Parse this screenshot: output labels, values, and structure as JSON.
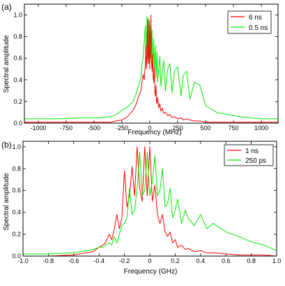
{
  "chart_data": [
    {
      "panel_label": "(a)",
      "type": "line",
      "xlabel": "Frequency (MHz)",
      "ylabel": "Spectral amplitude",
      "xlim": [
        -1125,
        1150
      ],
      "ylim": [
        0,
        1.1
      ],
      "x_ticks": [
        -1000,
        -750,
        -500,
        -250,
        0,
        250,
        500,
        750,
        1000
      ],
      "x_tick_labels": [
        "-1000",
        "-750",
        "-500",
        "-250",
        "0",
        "250",
        "500",
        "750",
        "1000"
      ],
      "y_ticks": [
        0,
        0.2,
        0.4,
        0.6,
        0.8,
        1.0
      ],
      "y_tick_labels": [
        "0.0",
        "0.2",
        "0.4",
        "0.6",
        "0.8",
        "1.0"
      ],
      "grid": false,
      "legend_position": "top-right",
      "series": [
        {
          "name": "6 ns",
          "color": "#ff0000",
          "x": [
            -1125,
            -1000,
            -800,
            -600,
            -450,
            -350,
            -300,
            -250,
            -200,
            -150,
            -120,
            -100,
            -80,
            -70,
            -60,
            -50,
            -40,
            -35,
            -30,
            -25,
            -20,
            -15,
            -10,
            -5,
            0,
            5,
            10,
            15,
            20,
            25,
            30,
            35,
            40,
            45,
            50,
            55,
            60,
            65,
            70,
            80,
            90,
            100,
            110,
            125,
            140,
            160,
            180,
            200,
            220,
            250,
            280,
            300,
            330,
            360,
            400,
            450,
            500,
            600,
            800,
            1000,
            1150
          ],
          "y": [
            0.01,
            0.01,
            0.01,
            0.01,
            0.01,
            0.01,
            0.02,
            0.03,
            0.06,
            0.12,
            0.18,
            0.25,
            0.3,
            0.38,
            0.45,
            0.4,
            0.55,
            0.72,
            0.5,
            0.62,
            0.96,
            0.55,
            0.62,
            0.95,
            0.5,
            0.68,
            1.0,
            0.58,
            0.48,
            0.64,
            0.42,
            0.38,
            0.52,
            0.3,
            0.25,
            0.35,
            0.2,
            0.18,
            0.24,
            0.14,
            0.18,
            0.11,
            0.14,
            0.09,
            0.1,
            0.07,
            0.08,
            0.05,
            0.06,
            0.04,
            0.05,
            0.03,
            0.04,
            0.03,
            0.02,
            0.02,
            0.01,
            0.01,
            0.01,
            0.01,
            0.01
          ]
        },
        {
          "name": "0.5 ns",
          "color": "#00ee00",
          "x": [
            -1125,
            -1000,
            -800,
            -600,
            -450,
            -350,
            -300,
            -250,
            -200,
            -150,
            -120,
            -100,
            -80,
            -70,
            -60,
            -50,
            -40,
            -35,
            -30,
            -25,
            -20,
            -15,
            -10,
            -5,
            0,
            5,
            10,
            15,
            20,
            25,
            30,
            35,
            40,
            45,
            50,
            55,
            60,
            65,
            70,
            80,
            90,
            100,
            110,
            125,
            140,
            160,
            180,
            200,
            220,
            250,
            280,
            300,
            330,
            360,
            400,
            450,
            500,
            600,
            800,
            1000,
            1150
          ],
          "y": [
            0.04,
            0.04,
            0.04,
            0.05,
            0.05,
            0.06,
            0.08,
            0.12,
            0.15,
            0.2,
            0.28,
            0.35,
            0.42,
            0.55,
            0.6,
            0.75,
            0.9,
            0.62,
            0.7,
            0.99,
            0.6,
            0.8,
            0.97,
            0.55,
            0.75,
            0.9,
            0.6,
            0.7,
            0.86,
            0.52,
            0.62,
            0.78,
            0.45,
            0.58,
            0.72,
            0.42,
            0.52,
            0.66,
            0.38,
            0.5,
            0.62,
            0.34,
            0.46,
            0.58,
            0.3,
            0.5,
            0.55,
            0.28,
            0.48,
            0.52,
            0.25,
            0.44,
            0.48,
            0.22,
            0.38,
            0.35,
            0.16,
            0.1,
            0.06,
            0.04,
            0.04
          ]
        }
      ]
    },
    {
      "panel_label": "(b)",
      "type": "line",
      "xlabel": "Frequency (GHz)",
      "ylabel": "Spectral amplitude",
      "xlim": [
        -1.0,
        1.0
      ],
      "ylim": [
        0,
        1.05
      ],
      "x_ticks": [
        -1.0,
        -0.8,
        -0.6,
        -0.4,
        -0.2,
        0.0,
        0.2,
        0.4,
        0.6,
        0.8,
        1.0
      ],
      "x_tick_labels": [
        "-1.0",
        "-0.8",
        "-0.6",
        "-0.4",
        "-0.2",
        "0",
        "0.2",
        "0.4",
        "0.6",
        "0.8",
        "1.0"
      ],
      "y_ticks": [
        0,
        0.2,
        0.4,
        0.6,
        0.8,
        1.0
      ],
      "y_tick_labels": [
        "0.0",
        "0.2",
        "0.4",
        "0.6",
        "0.8",
        "1.0"
      ],
      "grid": false,
      "legend_position": "top-right",
      "series": [
        {
          "name": "1 ns",
          "color": "#ff0000",
          "x": [
            -1.0,
            -0.8,
            -0.6,
            -0.5,
            -0.45,
            -0.4,
            -0.37,
            -0.35,
            -0.32,
            -0.3,
            -0.28,
            -0.26,
            -0.24,
            -0.22,
            -0.2,
            -0.18,
            -0.16,
            -0.14,
            -0.12,
            -0.1,
            -0.08,
            -0.06,
            -0.04,
            -0.02,
            0.0,
            0.02,
            0.04,
            0.06,
            0.08,
            0.1,
            0.12,
            0.14,
            0.16,
            0.18,
            0.2,
            0.22,
            0.25,
            0.28,
            0.3,
            0.35,
            0.4,
            0.45,
            0.5,
            0.6,
            0.7,
            0.8,
            0.9,
            1.0
          ],
          "y": [
            0.0,
            0.0,
            0.01,
            0.03,
            0.04,
            0.08,
            0.1,
            0.12,
            0.2,
            0.15,
            0.25,
            0.38,
            0.25,
            0.35,
            0.78,
            0.45,
            0.55,
            0.82,
            0.55,
            1.0,
            0.62,
            0.5,
            1.0,
            0.55,
            1.0,
            0.5,
            0.65,
            0.38,
            0.3,
            0.38,
            0.22,
            0.18,
            0.22,
            0.12,
            0.15,
            0.08,
            0.1,
            0.06,
            0.07,
            0.04,
            0.05,
            0.03,
            0.03,
            0.02,
            0.01,
            0.01,
            0.01,
            0.0
          ]
        },
        {
          "name": "250 ps",
          "color": "#00ee00",
          "x": [
            -1.0,
            -0.8,
            -0.6,
            -0.5,
            -0.45,
            -0.4,
            -0.37,
            -0.35,
            -0.32,
            -0.3,
            -0.28,
            -0.26,
            -0.24,
            -0.22,
            -0.2,
            -0.18,
            -0.16,
            -0.14,
            -0.12,
            -0.1,
            -0.08,
            -0.06,
            -0.04,
            -0.02,
            0.0,
            0.02,
            0.04,
            0.06,
            0.08,
            0.1,
            0.12,
            0.14,
            0.16,
            0.18,
            0.2,
            0.22,
            0.25,
            0.28,
            0.3,
            0.35,
            0.4,
            0.45,
            0.5,
            0.6,
            0.7,
            0.8,
            0.9,
            1.0
          ],
          "y": [
            0.02,
            0.02,
            0.03,
            0.05,
            0.06,
            0.08,
            0.08,
            0.1,
            0.12,
            0.1,
            0.18,
            0.12,
            0.2,
            0.28,
            0.3,
            0.35,
            0.62,
            0.38,
            0.42,
            0.62,
            0.95,
            0.55,
            0.6,
            0.95,
            0.55,
            0.68,
            0.92,
            0.55,
            0.6,
            0.8,
            0.45,
            0.48,
            0.62,
            0.35,
            0.42,
            0.52,
            0.3,
            0.42,
            0.35,
            0.28,
            0.38,
            0.25,
            0.3,
            0.22,
            0.18,
            0.13,
            0.1,
            0.05
          ]
        }
      ]
    }
  ]
}
